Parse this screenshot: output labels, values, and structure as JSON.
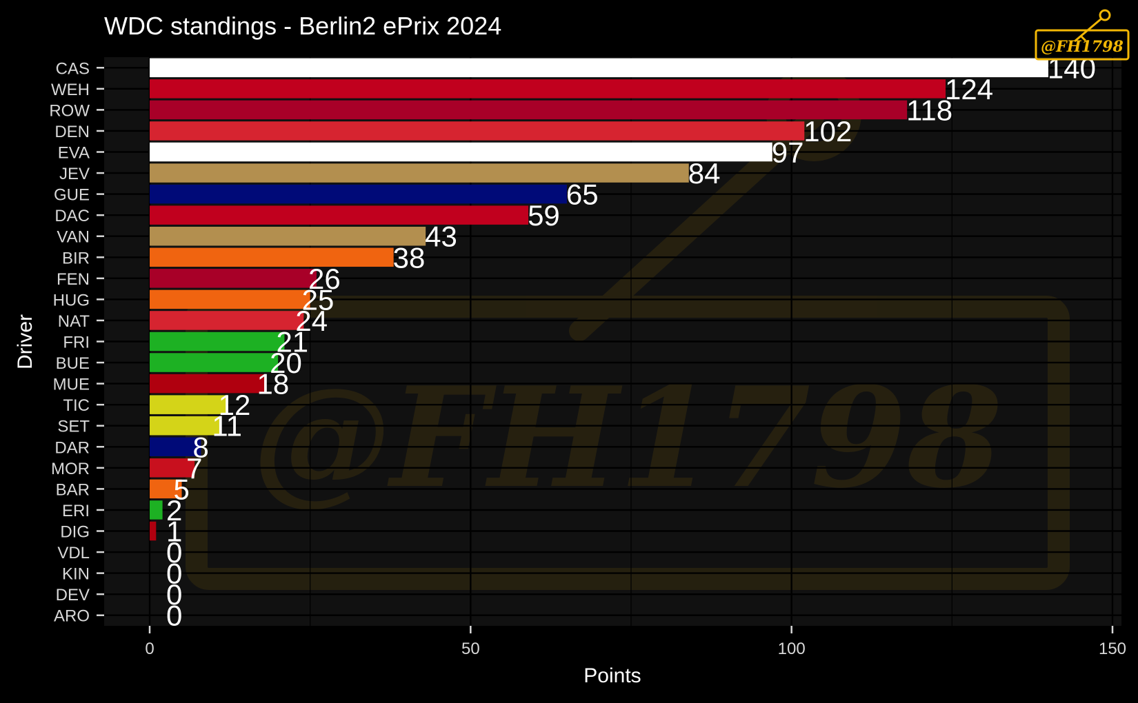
{
  "colors": {
    "background": "#000000",
    "panel": "#111111",
    "gridline": "#000000",
    "text": "#ffffff",
    "tick_text": "#d8d8d8",
    "logo": "#f2b705"
  },
  "watermark": {
    "text": "@FH1798",
    "icon": "key-icon"
  },
  "chart_data": {
    "type": "bar",
    "orientation": "horizontal",
    "title": "WDC standings - Berlin2 ePrix 2024",
    "xlabel": "Points",
    "ylabel": "Driver",
    "xlim": [
      0,
      150
    ],
    "xticks": [
      0,
      50,
      100,
      150
    ],
    "grid": true,
    "legend": "none",
    "categories": [
      "CAS",
      "WEH",
      "ROW",
      "DEN",
      "EVA",
      "JEV",
      "GUE",
      "DAC",
      "VAN",
      "BIR",
      "FEN",
      "HUG",
      "NAT",
      "FRI",
      "BUE",
      "MUE",
      "TIC",
      "SET",
      "DAR",
      "MOR",
      "BAR",
      "ERI",
      "DIG",
      "VDL",
      "KIN",
      "DEV",
      "ARO"
    ],
    "values": [
      140,
      124,
      118,
      102,
      97,
      84,
      65,
      59,
      43,
      38,
      26,
      25,
      24,
      21,
      20,
      18,
      12,
      11,
      8,
      7,
      5,
      2,
      1,
      0,
      0,
      0,
      0
    ],
    "colors": [
      "#ffffff",
      "#c1001e",
      "#a80028",
      "#d62430",
      "#ffffff",
      "#b38f4f",
      "#000a78",
      "#c1001e",
      "#b38f4f",
      "#f06410",
      "#a80028",
      "#f06410",
      "#d62430",
      "#1db123",
      "#1db123",
      "#b0000f",
      "#d4d418",
      "#d4d418",
      "#000a78",
      "#c8101e",
      "#f06410",
      "#1db123",
      "#b0000f",
      "#d62430",
      "#c1001e",
      "#1db123",
      "#f06410"
    ]
  }
}
